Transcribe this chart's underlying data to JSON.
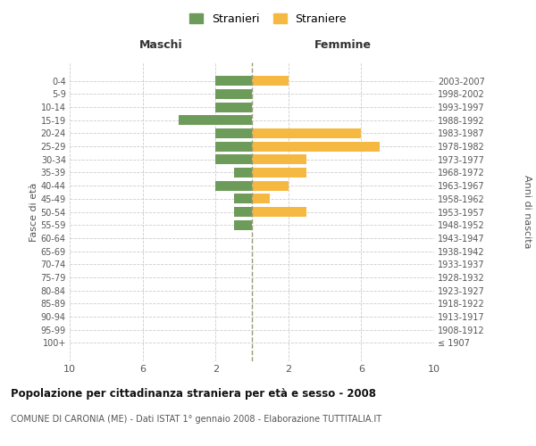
{
  "age_groups": [
    "100+",
    "95-99",
    "90-94",
    "85-89",
    "80-84",
    "75-79",
    "70-74",
    "65-69",
    "60-64",
    "55-59",
    "50-54",
    "45-49",
    "40-44",
    "35-39",
    "30-34",
    "25-29",
    "20-24",
    "15-19",
    "10-14",
    "5-9",
    "0-4"
  ],
  "birth_years": [
    "≤ 1907",
    "1908-1912",
    "1913-1917",
    "1918-1922",
    "1923-1927",
    "1928-1932",
    "1933-1937",
    "1938-1942",
    "1943-1947",
    "1948-1952",
    "1953-1957",
    "1958-1962",
    "1963-1967",
    "1968-1972",
    "1973-1977",
    "1978-1982",
    "1983-1987",
    "1988-1992",
    "1993-1997",
    "1998-2002",
    "2003-2007"
  ],
  "maschi": [
    0,
    0,
    0,
    0,
    0,
    0,
    0,
    0,
    0,
    1,
    1,
    1,
    2,
    1,
    2,
    2,
    2,
    4,
    2,
    2,
    2
  ],
  "femmine": [
    0,
    0,
    0,
    0,
    0,
    0,
    0,
    0,
    0,
    0,
    3,
    1,
    2,
    3,
    3,
    7,
    6,
    0,
    0,
    0,
    2
  ],
  "color_maschi": "#6d9b5a",
  "color_femmine": "#f5b942",
  "title": "Popolazione per cittadinanza straniera per età e sesso - 2008",
  "subtitle": "COMUNE DI CARONIA (ME) - Dati ISTAT 1° gennaio 2008 - Elaborazione TUTTITALIA.IT",
  "xlabel_left": "Maschi",
  "xlabel_right": "Femmine",
  "ylabel_left": "Fasce di età",
  "ylabel_right": "Anni di nascita",
  "legend_maschi": "Stranieri",
  "legend_femmine": "Straniere",
  "xlim": 10,
  "background_color": "#ffffff",
  "grid_color": "#cccccc"
}
